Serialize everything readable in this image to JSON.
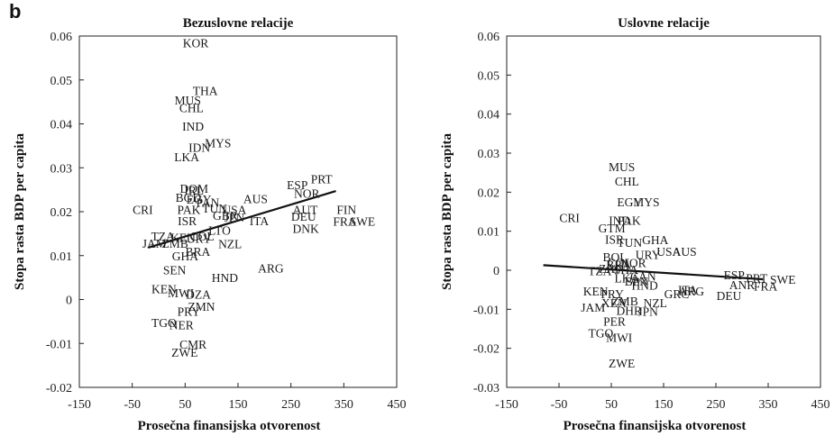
{
  "panel_label": "b",
  "chart_data": [
    {
      "type": "scatter",
      "title": "Bezuslovne relacije",
      "xlabel": "Prosečna finansijska otvorenost",
      "ylabel": "Stopa rasta BDP per capita",
      "xlim": [
        -150,
        450
      ],
      "ylim": [
        -0.02,
        0.06
      ],
      "xticks": [
        "-150",
        "-50",
        "50",
        "150",
        "250",
        "350",
        "450"
      ],
      "yticks": [
        "-0.02",
        "-0.01",
        "0",
        "0.01",
        "0.02",
        "0.03",
        "0.04",
        "0.05",
        "0.06"
      ],
      "trendline": {
        "x": [
          -20,
          335
        ],
        "y": [
          0.0118,
          0.0247
        ]
      },
      "points": [
        {
          "label": "KOR",
          "x": 70,
          "y": 0.0585
        },
        {
          "label": "THA",
          "x": 88,
          "y": 0.0476
        },
        {
          "label": "MUS",
          "x": 55,
          "y": 0.0454
        },
        {
          "label": "CHL",
          "x": 62,
          "y": 0.0437
        },
        {
          "label": "IND",
          "x": 65,
          "y": 0.0395
        },
        {
          "label": "IDN",
          "x": 77,
          "y": 0.0347
        },
        {
          "label": "MYS",
          "x": 112,
          "y": 0.0357
        },
        {
          "label": "LKA",
          "x": 53,
          "y": 0.0325
        },
        {
          "label": "ESP",
          "x": 262,
          "y": 0.0262
        },
        {
          "label": "PRT",
          "x": 308,
          "y": 0.0275
        },
        {
          "label": "NOR",
          "x": 280,
          "y": 0.0242
        },
        {
          "label": "DOM",
          "x": 67,
          "y": 0.0253
        },
        {
          "label": "IRL",
          "x": 67,
          "y": 0.0249
        },
        {
          "label": "BGD",
          "x": 56,
          "y": 0.0233
        },
        {
          "label": "EGY",
          "x": 76,
          "y": 0.0229
        },
        {
          "label": "PAN",
          "x": 93,
          "y": 0.0222
        },
        {
          "label": "AUS",
          "x": 183,
          "y": 0.023
        },
        {
          "label": "CRI",
          "x": -30,
          "y": 0.0205
        },
        {
          "label": "PAK",
          "x": 57,
          "y": 0.0205
        },
        {
          "label": "TUN",
          "x": 106,
          "y": 0.0208
        },
        {
          "label": "USA",
          "x": 143,
          "y": 0.0205
        },
        {
          "label": "AUT",
          "x": 277,
          "y": 0.0205
        },
        {
          "label": "FIN",
          "x": 355,
          "y": 0.0205
        },
        {
          "label": "DEU",
          "x": 274,
          "y": 0.019
        },
        {
          "label": "FRA",
          "x": 352,
          "y": 0.0178
        },
        {
          "label": "SWE",
          "x": 385,
          "y": 0.0178
        },
        {
          "label": "DNK",
          "x": 278,
          "y": 0.0162
        },
        {
          "label": "ISR",
          "x": 54,
          "y": 0.018
        },
        {
          "label": "GBR",
          "x": 126,
          "y": 0.0192
        },
        {
          "label": "JPN",
          "x": 143,
          "y": 0.0188
        },
        {
          "label": "ITA",
          "x": 190,
          "y": 0.018
        },
        {
          "label": "LTO",
          "x": 115,
          "y": 0.0158
        },
        {
          "label": "COL",
          "x": 82,
          "y": 0.0145
        },
        {
          "label": "NZL",
          "x": 135,
          "y": 0.0127
        },
        {
          "label": "JAM",
          "x": -8,
          "y": 0.0128
        },
        {
          "label": "ZMB",
          "x": 31,
          "y": 0.0128
        },
        {
          "label": "TZA",
          "x": 8,
          "y": 0.0145
        },
        {
          "label": "KEN",
          "x": 46,
          "y": 0.0142
        },
        {
          "label": "URY",
          "x": 76,
          "y": 0.014
        },
        {
          "label": "BRA",
          "x": 74,
          "y": 0.011
        },
        {
          "label": "ARG",
          "x": 212,
          "y": 0.0072
        },
        {
          "label": "GHA",
          "x": 50,
          "y": 0.01
        },
        {
          "label": "SEN",
          "x": 30,
          "y": 0.0068
        },
        {
          "label": "HND",
          "x": 125,
          "y": 0.005
        },
        {
          "label": "KEN",
          "x": 10,
          "y": 0.0025
        },
        {
          "label": "MWI",
          "x": 42,
          "y": 0.0015
        },
        {
          "label": "DZA",
          "x": 75,
          "y": 0.0012
        },
        {
          "label": "PRY",
          "x": 57,
          "y": -0.0027
        },
        {
          "label": "ZMN",
          "x": 81,
          "y": -0.0015
        },
        {
          "label": "TGO",
          "x": 10,
          "y": -0.0052
        },
        {
          "label": "NER",
          "x": 43,
          "y": -0.0057
        },
        {
          "label": "CMR",
          "x": 65,
          "y": -0.0102
        },
        {
          "label": "ZWE",
          "x": 49,
          "y": -0.012
        }
      ]
    },
    {
      "type": "scatter",
      "title": "Uslovne relacije",
      "xlabel": "Prosečna finansijska otvorenost",
      "ylabel": "Stopa rasta BDP per capita",
      "xlim": [
        -150,
        450
      ],
      "ylim": [
        -0.03,
        0.06
      ],
      "xticks": [
        "-150",
        "-50",
        "50",
        "150",
        "250",
        "350",
        "450"
      ],
      "yticks": [
        "-0.03",
        "-0.02",
        "-0.01",
        "0",
        "0.01",
        "0.02",
        "0.03",
        "0.04",
        "0.05",
        "0.06"
      ],
      "trendline": {
        "x": [
          -80,
          340
        ],
        "y": [
          0.0013,
          -0.0023
        ]
      },
      "points": [
        {
          "label": "MUS",
          "x": 70,
          "y": 0.0265
        },
        {
          "label": "CHL",
          "x": 80,
          "y": 0.0228
        },
        {
          "label": "EGY",
          "x": 85,
          "y": 0.0175
        },
        {
          "label": "MYS",
          "x": 117,
          "y": 0.0175
        },
        {
          "label": "CRI",
          "x": -30,
          "y": 0.0135
        },
        {
          "label": "IND",
          "x": 66,
          "y": 0.0128
        },
        {
          "label": "PAK",
          "x": 84,
          "y": 0.0128
        },
        {
          "label": "GTM",
          "x": 51,
          "y": 0.0108
        },
        {
          "label": "GHA",
          "x": 134,
          "y": 0.0078
        },
        {
          "label": "ISR",
          "x": 56,
          "y": 0.008
        },
        {
          "label": "TUN",
          "x": 85,
          "y": 0.0072
        },
        {
          "label": "USA",
          "x": 160,
          "y": 0.0048
        },
        {
          "label": "AUS",
          "x": 190,
          "y": 0.0048
        },
        {
          "label": "URY",
          "x": 120,
          "y": 0.004
        },
        {
          "label": "BOL",
          "x": 57,
          "y": 0.0035
        },
        {
          "label": "COL",
          "x": 66,
          "y": 0.002
        },
        {
          "label": "NOR",
          "x": 92,
          "y": 0.002
        },
        {
          "label": "BRA",
          "x": 64,
          "y": 0.0015
        },
        {
          "label": "ZAF",
          "x": 48,
          "y": 0.0005
        },
        {
          "label": "TZA",
          "x": 28,
          "y": -0.0001
        },
        {
          "label": "SHA",
          "x": 78,
          "y": 0.0002
        },
        {
          "label": "LKA",
          "x": 80,
          "y": -0.002
        },
        {
          "label": "CAN",
          "x": 111,
          "y": -0.0015
        },
        {
          "label": "BPN",
          "x": 98,
          "y": -0.0028
        },
        {
          "label": "HND",
          "x": 114,
          "y": -0.0038
        },
        {
          "label": "KEN",
          "x": 20,
          "y": -0.0053
        },
        {
          "label": "PRY",
          "x": 52,
          "y": -0.006
        },
        {
          "label": "ZMB",
          "x": 76,
          "y": -0.0078
        },
        {
          "label": "NZL",
          "x": 134,
          "y": -0.0083
        },
        {
          "label": "GRC",
          "x": 175,
          "y": -0.006
        },
        {
          "label": "ARG",
          "x": 203,
          "y": -0.0053
        },
        {
          "label": "ITA",
          "x": 196,
          "y": -0.005
        },
        {
          "label": "XEN",
          "x": 55,
          "y": -0.0083
        },
        {
          "label": "JAM",
          "x": 15,
          "y": -0.0095
        },
        {
          "label": "DHR",
          "x": 84,
          "y": -0.0103
        },
        {
          "label": "JPN",
          "x": 120,
          "y": -0.0105
        },
        {
          "label": "PER",
          "x": 56,
          "y": -0.013
        },
        {
          "label": "TGO",
          "x": 30,
          "y": -0.016
        },
        {
          "label": "MWI",
          "x": 65,
          "y": -0.0172
        },
        {
          "label": "ESP",
          "x": 285,
          "y": -0.0012
        },
        {
          "label": "PRT",
          "x": 328,
          "y": -0.002
        },
        {
          "label": "SWE",
          "x": 378,
          "y": -0.0023
        },
        {
          "label": "ANR",
          "x": 300,
          "y": -0.0037
        },
        {
          "label": "FRA",
          "x": 345,
          "y": -0.004
        },
        {
          "label": "DEU",
          "x": 275,
          "y": -0.0065
        },
        {
          "label": "ZWE",
          "x": 70,
          "y": -0.0238
        }
      ]
    }
  ]
}
